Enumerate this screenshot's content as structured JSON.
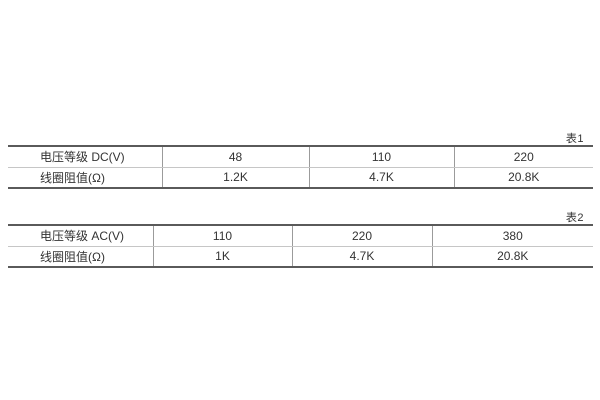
{
  "page": {
    "background": "#ffffff"
  },
  "colors": {
    "table_outer_border": "#5a5a5a",
    "row_separator": "#c6c6c6",
    "column_divider": "#9b9b9b",
    "text": "#333333"
  },
  "tables": [
    {
      "label": "表1",
      "rows": [
        {
          "header": "电压等级 DC(V)",
          "values": [
            "48",
            "110",
            "220"
          ]
        },
        {
          "header": "线圈阻值(Ω)",
          "values": [
            "1.2K",
            "4.7K",
            "20.8K"
          ]
        }
      ]
    },
    {
      "label": "表2",
      "rows": [
        {
          "header": "电压等级 AC(V)",
          "values": [
            "110",
            "220",
            "380"
          ]
        },
        {
          "header": "线圈阻值(Ω)",
          "values": [
            "1K",
            "4.7K",
            "20.8K"
          ]
        }
      ]
    }
  ]
}
